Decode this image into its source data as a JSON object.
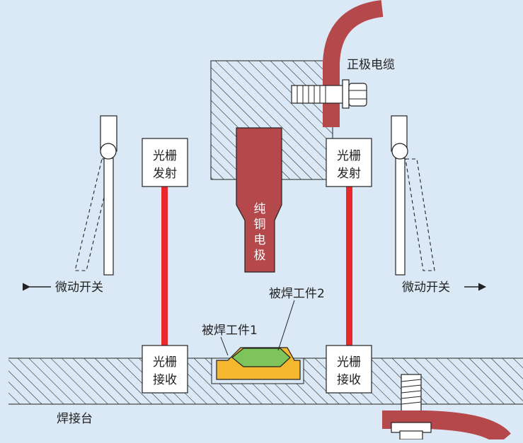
{
  "labels": {
    "positive_cable": "正极电缆",
    "grating_emitter_left": [
      "光栅",
      "发射"
    ],
    "grating_emitter_right": [
      "光栅",
      "发射"
    ],
    "grating_receiver_left": [
      "光栅",
      "接收"
    ],
    "grating_receiver_right": [
      "光栅",
      "接收"
    ],
    "copper_electrode": [
      "纯",
      "铜",
      "电",
      "极"
    ],
    "micro_switch_left": "微动开关",
    "micro_switch_right": "微动开关",
    "workpiece_1": "被焊工件1",
    "workpiece_2": "被焊工件2",
    "welding_table": "焊接台"
  },
  "colors": {
    "background": "#dbe9f7",
    "cable": "#b5484a",
    "electrode": "#b5484a",
    "beam": "#e8282b",
    "workpiece_1": "#f6b730",
    "workpiece_2": "#7dc45a",
    "hatch": "#222222"
  }
}
